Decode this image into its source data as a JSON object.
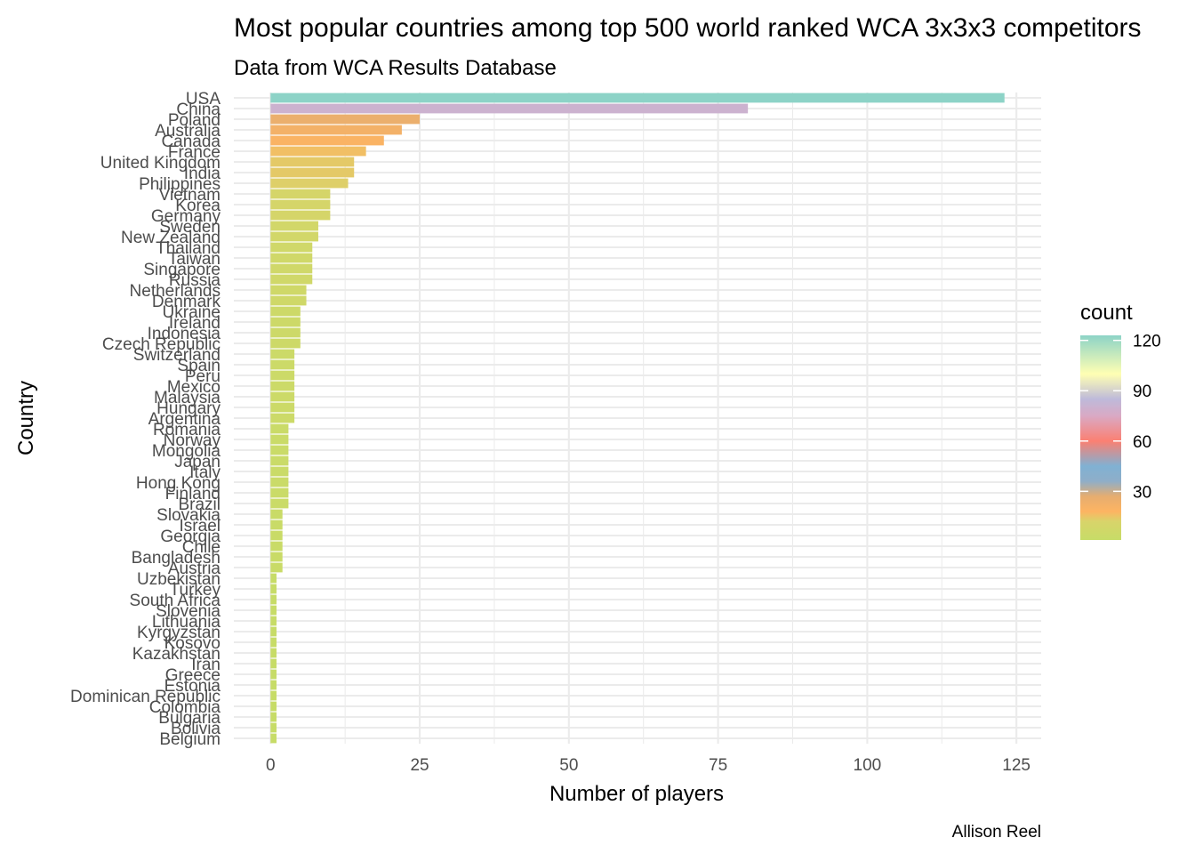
{
  "chart_data": {
    "type": "bar",
    "orientation": "horizontal",
    "title": "Most popular countries among top 500 world ranked WCA 3x3x3 competitors",
    "subtitle": "Data from WCA Results Database",
    "xlabel": "Number of players",
    "ylabel": "Country",
    "caption": "Allison Reel",
    "xlim": [
      -6.15,
      129.15
    ],
    "xticks": [
      0,
      25,
      50,
      75,
      100,
      125
    ],
    "grid": true,
    "legend": {
      "title": "count",
      "placement": "right",
      "ticks": [
        30,
        60,
        90,
        120
      ],
      "range": [
        1,
        123
      ],
      "gradient": [
        {
          "value": 1,
          "color": "#C7DC67"
        },
        {
          "value": 12,
          "color": "#D8D46A"
        },
        {
          "value": 18,
          "color": "#FDB462"
        },
        {
          "value": 27,
          "color": "#E6AD70"
        },
        {
          "value": 36,
          "color": "#8FAEC8"
        },
        {
          "value": 45,
          "color": "#80B1D3"
        },
        {
          "value": 60,
          "color": "#FB8072"
        },
        {
          "value": 75,
          "color": "#D9A9C4"
        },
        {
          "value": 85,
          "color": "#BEBADA"
        },
        {
          "value": 100,
          "color": "#FFFFB3"
        },
        {
          "value": 123,
          "color": "#8DD3C7"
        }
      ]
    },
    "categories": [
      "USA",
      "China",
      "Poland",
      "Australia",
      "Canada",
      "France",
      "United Kingdom",
      "India",
      "Philippines",
      "Vietnam",
      "Korea",
      "Germany",
      "Sweden",
      "New Zealand",
      "Thailand",
      "Taiwan",
      "Singapore",
      "Russia",
      "Netherlands",
      "Denmark",
      "Ukraine",
      "Ireland",
      "Indonesia",
      "Czech Republic",
      "Switzerland",
      "Spain",
      "Peru",
      "Mexico",
      "Malaysia",
      "Hungary",
      "Argentina",
      "Romania",
      "Norway",
      "Mongolia",
      "Japan",
      "Italy",
      "Hong Kong",
      "Finland",
      "Brazil",
      "Slovakia",
      "Israel",
      "Georgia",
      "Chile",
      "Bangladesh",
      "Austria",
      "Uzbekistan",
      "Turkey",
      "South Africa",
      "Slovenia",
      "Lithuania",
      "Kyrgyzstan",
      "Kosovo",
      "Kazakhstan",
      "Iran",
      "Greece",
      "Estonia",
      "Dominican Republic",
      "Colombia",
      "Bulgaria",
      "Bolivia",
      "Belgium"
    ],
    "values": [
      123,
      80,
      25,
      22,
      19,
      16,
      14,
      14,
      13,
      10,
      10,
      10,
      8,
      8,
      7,
      7,
      7,
      7,
      6,
      6,
      5,
      5,
      5,
      5,
      4,
      4,
      4,
      4,
      4,
      4,
      4,
      3,
      3,
      3,
      3,
      3,
      3,
      3,
      3,
      2,
      2,
      2,
      2,
      2,
      2,
      1,
      1,
      1,
      1,
      1,
      1,
      1,
      1,
      1,
      1,
      1,
      1,
      1,
      1,
      1,
      1
    ]
  }
}
